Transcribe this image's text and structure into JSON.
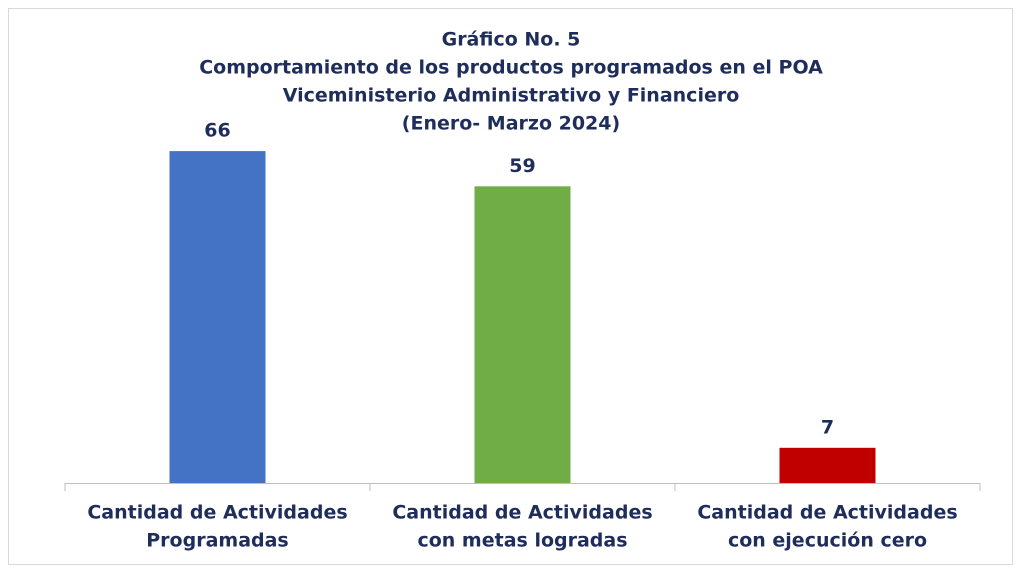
{
  "chart_data": {
    "type": "bar",
    "title": [
      "Gráfico No. 5",
      "Comportamiento de los productos programados en el POA",
      "Viceministerio Administrativo y Financiero",
      "(Enero- Marzo 2024)"
    ],
    "categories": [
      [
        "Cantidad de Actividades",
        "Programadas"
      ],
      [
        "Cantidad de Actividades",
        "con metas logradas"
      ],
      [
        "Cantidad de Actividades",
        "con ejecución cero"
      ]
    ],
    "values": [
      66,
      59,
      7
    ],
    "colors": [
      "#4472c4",
      "#70ad47",
      "#c00000"
    ],
    "ylim": [
      0,
      70
    ]
  }
}
